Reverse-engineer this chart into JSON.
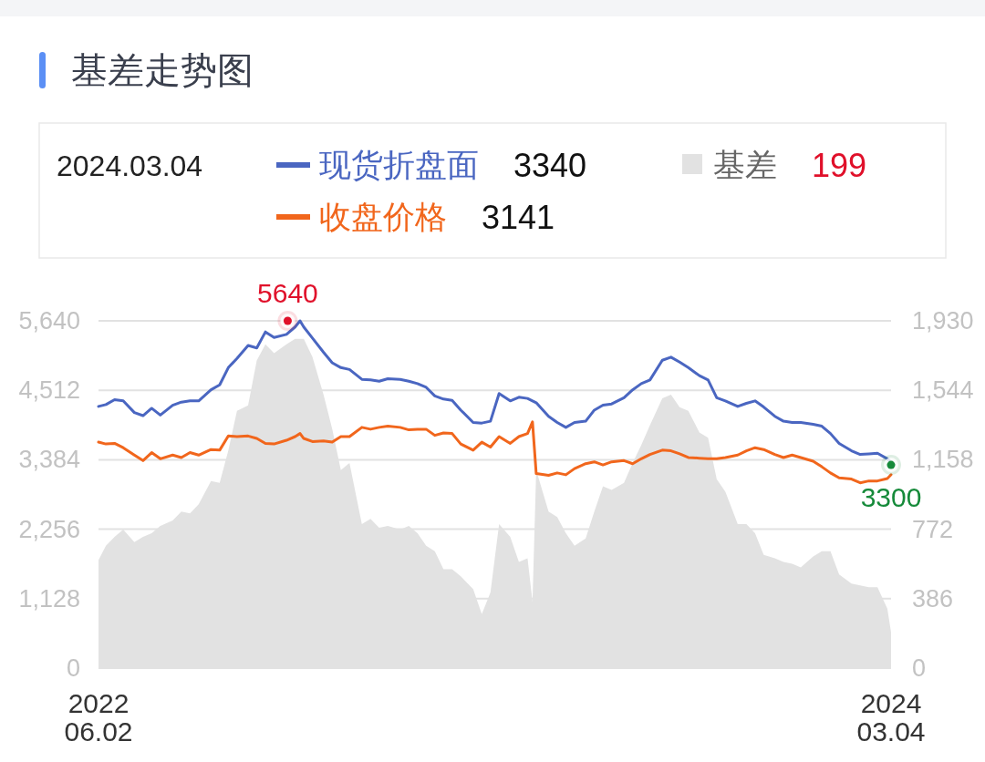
{
  "chart_data": {
    "type": "line",
    "title": "基差走势图",
    "x": [
      "2022-06-02",
      "2022-06-08",
      "2022-06-15",
      "2022-06-22",
      "2022-07-01",
      "2022-07-08",
      "2022-07-15",
      "2022-07-22",
      "2022-08-01",
      "2022-08-08",
      "2022-08-15",
      "2022-08-22",
      "2022-09-01",
      "2022-09-08",
      "2022-09-15",
      "2022-09-22",
      "2022-10-01",
      "2022-10-08",
      "2022-10-15",
      "2022-10-22",
      "2022-11-01",
      "2022-11-08",
      "2022-11-12",
      "2022-11-15",
      "2022-11-22",
      "2022-12-01",
      "2022-12-08",
      "2022-12-15",
      "2022-12-22",
      "2023-01-01",
      "2023-01-08",
      "2023-01-15",
      "2023-01-22",
      "2023-02-01",
      "2023-02-08",
      "2023-02-15",
      "2023-02-22",
      "2023-03-01",
      "2023-03-08",
      "2023-03-15",
      "2023-03-22",
      "2023-04-01",
      "2023-04-08",
      "2023-04-15",
      "2023-04-22",
      "2023-05-01",
      "2023-05-08",
      "2023-05-15",
      "2023-05-19",
      "2023-05-22",
      "2023-06-01",
      "2023-06-08",
      "2023-06-15",
      "2023-06-22",
      "2023-07-01",
      "2023-07-08",
      "2023-07-15",
      "2023-07-22",
      "2023-08-01",
      "2023-08-08",
      "2023-08-15",
      "2023-08-22",
      "2023-09-01",
      "2023-09-08",
      "2023-09-15",
      "2023-09-22",
      "2023-10-01",
      "2023-10-08",
      "2023-10-15",
      "2023-10-22",
      "2023-11-01",
      "2023-11-08",
      "2023-11-15",
      "2023-11-22",
      "2023-12-01",
      "2023-12-08",
      "2023-12-15",
      "2023-12-22",
      "2024-01-01",
      "2024-01-08",
      "2024-01-15",
      "2024-01-22",
      "2024-02-01",
      "2024-02-08",
      "2024-02-15",
      "2024-02-22",
      "2024-03-01",
      "2024-03-04"
    ],
    "series": [
      {
        "name": "现货折盘面",
        "color": "#4a66c1",
        "values": [
          4250,
          4280,
          4360,
          4340,
          4150,
          4100,
          4220,
          4110,
          4270,
          4320,
          4340,
          4340,
          4520,
          4600,
          4880,
          5030,
          5240,
          5200,
          5460,
          5370,
          5420,
          5540,
          5640,
          5540,
          5360,
          5130,
          4960,
          4880,
          4850,
          4690,
          4680,
          4660,
          4700,
          4690,
          4660,
          4620,
          4560,
          4420,
          4370,
          4350,
          4190,
          3990,
          3980,
          4010,
          4460,
          4340,
          4400,
          4380,
          4340,
          4310,
          4090,
          3990,
          3910,
          3990,
          4010,
          4190,
          4270,
          4290,
          4390,
          4520,
          4620,
          4680,
          5000,
          5050,
          4970,
          4880,
          4750,
          4680,
          4390,
          4340,
          4250,
          4300,
          4340,
          4240,
          4090,
          4010,
          3990,
          3990,
          3960,
          3930,
          3810,
          3650,
          3530,
          3470,
          3480,
          3490,
          3400,
          3340
        ]
      },
      {
        "name": "收盘价格",
        "color": "#f1661c",
        "values": [
          3670,
          3640,
          3650,
          3580,
          3460,
          3370,
          3500,
          3400,
          3460,
          3420,
          3500,
          3460,
          3550,
          3540,
          3770,
          3760,
          3770,
          3730,
          3650,
          3640,
          3700,
          3760,
          3810,
          3730,
          3680,
          3690,
          3670,
          3760,
          3760,
          3910,
          3880,
          3910,
          3930,
          3910,
          3870,
          3880,
          3880,
          3780,
          3820,
          3810,
          3640,
          3540,
          3670,
          3590,
          3760,
          3650,
          3760,
          3810,
          4000,
          3160,
          3130,
          3170,
          3140,
          3240,
          3320,
          3350,
          3300,
          3350,
          3370,
          3320,
          3400,
          3470,
          3540,
          3530,
          3480,
          3420,
          3410,
          3400,
          3400,
          3420,
          3460,
          3530,
          3580,
          3550,
          3470,
          3420,
          3460,
          3420,
          3360,
          3270,
          3170,
          3090,
          3070,
          3010,
          3040,
          3040,
          3080,
          3141
        ]
      },
      {
        "name": "基差",
        "type": "area",
        "axis": "y2",
        "color": "#e2e2e2",
        "values": [
          600,
          680,
          730,
          770,
          700,
          730,
          750,
          790,
          820,
          870,
          860,
          910,
          1040,
          1030,
          1210,
          1430,
          1460,
          1710,
          1800,
          1750,
          1800,
          1830,
          1830,
          1830,
          1730,
          1520,
          1330,
          1100,
          1140,
          800,
          830,
          780,
          790,
          770,
          790,
          750,
          680,
          650,
          550,
          550,
          510,
          440,
          300,
          420,
          800,
          730,
          590,
          610,
          370,
          1100,
          870,
          840,
          750,
          680,
          720,
          870,
          1010,
          990,
          1030,
          1140,
          1240,
          1350,
          1500,
          1520,
          1450,
          1430,
          1310,
          1280,
          1050,
          980,
          800,
          800,
          750,
          630,
          610,
          590,
          580,
          560,
          620,
          650,
          650,
          520,
          470,
          460,
          450,
          450,
          330,
          199
        ]
      }
    ],
    "xlim": [
      "2022-06-02",
      "2024-03-04"
    ],
    "xticks": [
      {
        "value": "2022-06-02",
        "label": "2022\n06.02"
      },
      {
        "value": "2024-03-04",
        "label": "2024\n03.04"
      }
    ],
    "ylim": [
      0,
      5640
    ],
    "yticks": [
      0,
      {
        "value": 1128,
        "label": "1,128"
      },
      {
        "value": 2256,
        "label": "2,256"
      },
      {
        "value": 3384,
        "label": "3,384"
      },
      {
        "value": 4512,
        "label": "4,512"
      },
      {
        "value": 5640,
        "label": "5,640"
      }
    ],
    "y2lim": [
      0,
      1930
    ],
    "y2ticks": [
      0,
      386,
      772,
      {
        "value": 1158,
        "label": "1,158"
      },
      {
        "value": 1544,
        "label": "1,544"
      },
      {
        "value": 1930,
        "label": "1,930"
      }
    ],
    "annotations": [
      "2024.03.04",
      "3340",
      "3141",
      "199",
      {
        "text": "5640",
        "x": "2022-11-02",
        "y": 5640
      },
      {
        "text": "3300",
        "x": "2024-03-04",
        "y": 3300
      }
    ],
    "grid": "y",
    "legend": "top",
    "line_style": "solid"
  }
}
